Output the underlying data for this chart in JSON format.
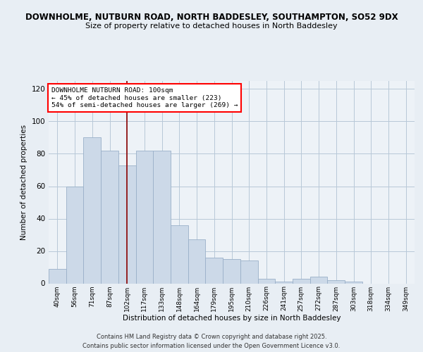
{
  "title1": "DOWNHOLME, NUTBURN ROAD, NORTH BADDESLEY, SOUTHAMPTON, SO52 9DX",
  "title2": "Size of property relative to detached houses in North Baddesley",
  "xlabel": "Distribution of detached houses by size in North Baddesley",
  "ylabel": "Number of detached properties",
  "categories": [
    "40sqm",
    "56sqm",
    "71sqm",
    "87sqm",
    "102sqm",
    "117sqm",
    "133sqm",
    "148sqm",
    "164sqm",
    "179sqm",
    "195sqm",
    "210sqm",
    "226sqm",
    "241sqm",
    "257sqm",
    "272sqm",
    "287sqm",
    "303sqm",
    "318sqm",
    "334sqm",
    "349sqm"
  ],
  "values": [
    9,
    60,
    90,
    82,
    73,
    82,
    82,
    36,
    27,
    16,
    15,
    14,
    3,
    1,
    3,
    4,
    2,
    1,
    0,
    0,
    0
  ],
  "bar_color": "#ccd9e8",
  "bar_edge_color": "#9ab0c8",
  "bar_width": 1.0,
  "red_line_x": 4,
  "annotation_title": "DOWNHOLME NUTBURN ROAD: 100sqm",
  "annotation_line1": "← 45% of detached houses are smaller (223)",
  "annotation_line2": "54% of semi-detached houses are larger (269) →",
  "ylim": [
    0,
    125
  ],
  "yticks": [
    0,
    20,
    40,
    60,
    80,
    100,
    120
  ],
  "footer1": "Contains HM Land Registry data © Crown copyright and database right 2025.",
  "footer2": "Contains public sector information licensed under the Open Government Licence v3.0.",
  "bg_color": "#e8eef4",
  "plot_bg_color": "#edf2f7",
  "grid_color": "#b8c8d8"
}
